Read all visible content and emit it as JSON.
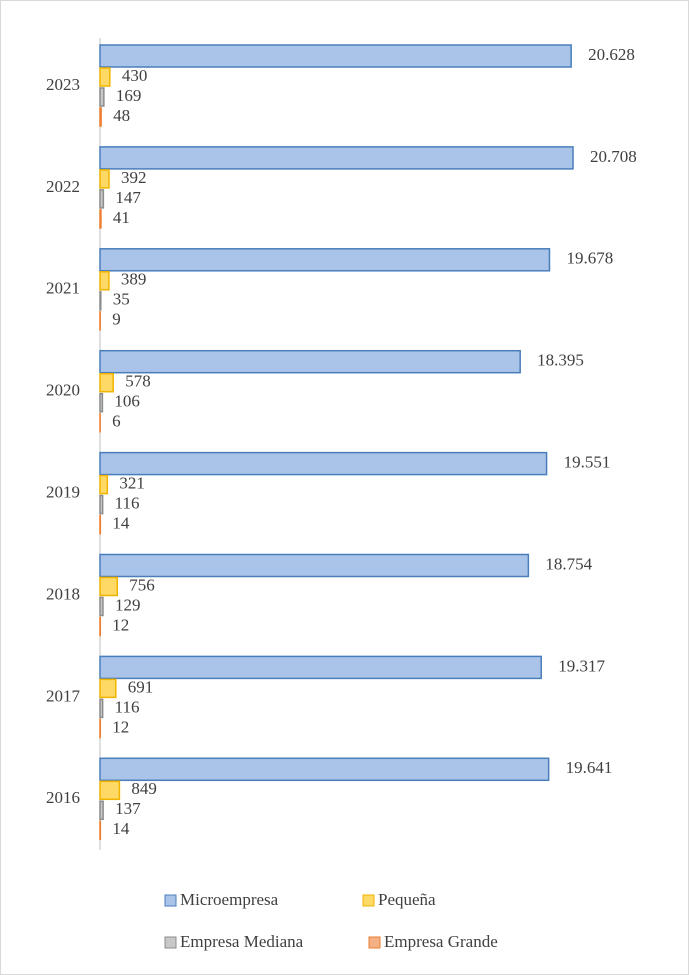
{
  "chart_data": {
    "type": "bar",
    "orientation": "horizontal",
    "categories": [
      "2023",
      "2022",
      "2021",
      "2020",
      "2019",
      "2018",
      "2017",
      "2016"
    ],
    "series": [
      {
        "name": "Microempresa",
        "color": "#a9c4e8",
        "stroke": "#4a7ebb",
        "values": [
          20628,
          20708,
          19678,
          18395,
          19551,
          18754,
          19317,
          19641
        ],
        "value_labels": [
          "20.628",
          "20.708",
          "19.678",
          "18.395",
          "19.551",
          "18.754",
          "19.317",
          "19.641"
        ]
      },
      {
        "name": "Pequeña",
        "color": "#ffd966",
        "stroke": "#f0b400",
        "values": [
          430,
          392,
          389,
          578,
          321,
          756,
          691,
          849
        ]
      },
      {
        "name": "Empresa Mediana",
        "color": "#c8c8c8",
        "stroke": "#8c8c8c",
        "values": [
          169,
          147,
          35,
          106,
          116,
          129,
          116,
          137
        ]
      },
      {
        "name": "Empresa Grande",
        "color": "#f4b183",
        "stroke": "#ed7d31",
        "values": [
          48,
          41,
          9,
          6,
          14,
          12,
          12,
          14
        ]
      }
    ],
    "legend": "bottom"
  }
}
